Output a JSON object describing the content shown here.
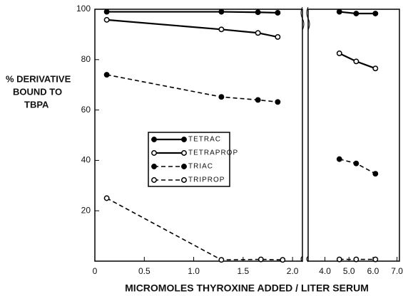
{
  "chart_data": [
    {
      "type": "line",
      "ylabel": [
        "% DERIVATIVE",
        "BOUND TO",
        "TBPA"
      ],
      "xlabel": "MICROMOLES THYROXINE ADDED / LITER SERUM",
      "xlim": [
        0,
        2.1
      ],
      "xticks": [
        0,
        0.5,
        {
          "value": 1,
          "label": "1.0"
        },
        1.5,
        {
          "value": 2,
          "label": "2.0"
        }
      ],
      "ylim": [
        0,
        100
      ],
      "yticks": [
        20,
        40,
        60,
        80,
        100
      ],
      "series": [
        {
          "name": "TETRAC",
          "color": "#000000",
          "line": "solid",
          "marker": "filled",
          "x": [
            0.12,
            1.28,
            1.65,
            1.85
          ],
          "values": [
            99,
            99,
            98.8,
            98.6
          ]
        },
        {
          "name": "TETRAPROP",
          "color": "#000000",
          "line": "solid",
          "marker": "open",
          "x": [
            0.12,
            1.28,
            1.65,
            1.85
          ],
          "values": [
            95.8,
            92,
            90.6,
            89
          ]
        },
        {
          "name": "TRIAC",
          "color": "#000000",
          "line": "dashed",
          "marker": "filled",
          "x": [
            0.12,
            1.28,
            1.65,
            1.85
          ],
          "values": [
            74,
            65.2,
            64,
            63.2
          ]
        },
        {
          "name": "TRIPROP",
          "color": "#000000",
          "line": "dashed",
          "marker": "open",
          "x": [
            0.12,
            1.28,
            1.68,
            1.9
          ],
          "values": [
            25,
            0.5,
            0.7,
            0.5
          ]
        }
      ]
    },
    {
      "type": "line",
      "xlim": [
        3.3,
        7.1
      ],
      "xticks": [
        {
          "value": 4,
          "label": "4.0"
        },
        {
          "value": 5,
          "label": "5.0"
        },
        {
          "value": 6,
          "label": "6.0"
        },
        {
          "value": 7,
          "label": "7.0"
        }
      ],
      "ylim": [
        0,
        100
      ],
      "series": [
        {
          "color": "#000000",
          "line": "solid",
          "marker": "filled",
          "x": [
            4.6,
            5.3,
            6.1
          ],
          "values": [
            99,
            98.3,
            98.3
          ]
        },
        {
          "color": "#000000",
          "line": "solid",
          "marker": "open",
          "x": [
            4.6,
            5.3,
            6.1
          ],
          "values": [
            82.5,
            79.3,
            76.5
          ]
        },
        {
          "color": "#000000",
          "line": "dashed",
          "marker": "filled",
          "x": [
            4.6,
            5.3,
            6.1
          ],
          "values": [
            40.5,
            38.8,
            34.7
          ]
        },
        {
          "color": "#000000",
          "line": "dashed",
          "marker": "open",
          "x": [
            4.6,
            5.3,
            6.1
          ],
          "values": [
            0.7,
            0.7,
            0.7
          ]
        }
      ]
    }
  ]
}
